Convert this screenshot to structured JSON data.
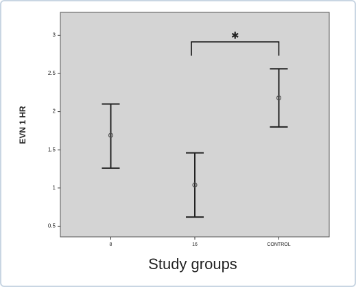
{
  "chart_data": {
    "type": "errorbar",
    "y_label": "EVN 1 HR",
    "x_label": "Study groups",
    "categories": [
      "8",
      "16",
      "CONTROL"
    ],
    "values": [
      1.69,
      1.04,
      2.18
    ],
    "lower": [
      1.26,
      0.62,
      1.8
    ],
    "upper": [
      2.1,
      1.46,
      2.56
    ],
    "ylim": [
      0.36,
      3.3
    ],
    "yticks": [
      0.5,
      1,
      1.5,
      2,
      2.5,
      3
    ],
    "annotation": {
      "text": "✱",
      "from": "16",
      "to": "CONTROL"
    },
    "color": "#222222"
  }
}
